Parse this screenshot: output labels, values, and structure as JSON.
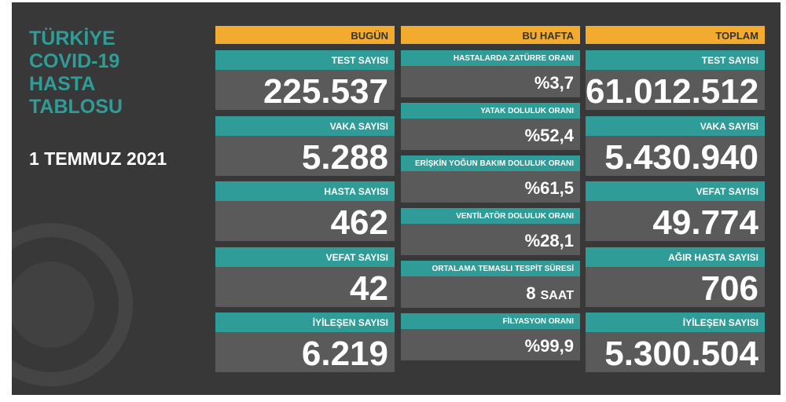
{
  "title": {
    "lines": [
      "TÜRKİYE",
      "COVID-19",
      "HASTA",
      "TABLOSU"
    ],
    "date": "1 TEMMUZ 2021"
  },
  "columns": [
    {
      "header": "BUGÜN",
      "cards": [
        {
          "label": "TEST SAYISI",
          "value": "225.537"
        },
        {
          "label": "VAKA SAYISI",
          "value": "5.288"
        },
        {
          "label": "HASTA SAYISI",
          "value": "462"
        },
        {
          "label": "VEFAT SAYISI",
          "value": "42"
        },
        {
          "label": "İYİLEŞEN SAYISI",
          "value": "6.219"
        }
      ]
    },
    {
      "header": "BU HAFTA",
      "cards": [
        {
          "label": "HASTALARDA ZATÜRRE ORANI",
          "value": "%3,7"
        },
        {
          "label": "YATAK DOLULUK ORANI",
          "value": "%52,4"
        },
        {
          "label": "ERİŞKİN YOĞUN BAKIM DOLULUK ORANI",
          "value": "%61,5"
        },
        {
          "label": "VENTİLATÖR DOLULUK ORANI",
          "value": "%28,1"
        },
        {
          "label": "ORTALAMA TEMASLI TESPİT SÜRESİ",
          "value": "8",
          "unit": "SAAT"
        },
        {
          "label": "FİLYASYON ORANI",
          "value": "%99,9"
        }
      ]
    },
    {
      "header": "TOPLAM",
      "cards": [
        {
          "label": "TEST SAYISI",
          "value": "61.012.512"
        },
        {
          "label": "VAKA SAYISI",
          "value": "5.430.940"
        },
        {
          "label": "VEFAT SAYISI",
          "value": "49.774"
        },
        {
          "label": "AĞIR HASTA SAYISI",
          "value": "706"
        },
        {
          "label": "İYİLEŞEN SAYISI",
          "value": "5.300.504"
        }
      ]
    }
  ]
}
